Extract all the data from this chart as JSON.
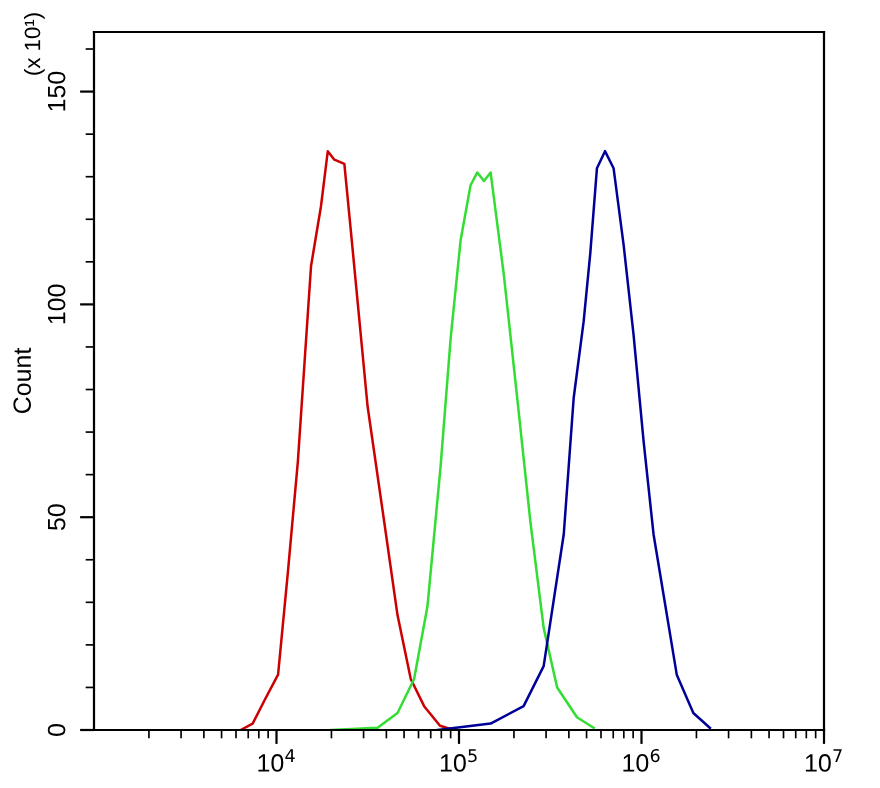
{
  "chart_data": {
    "type": "line",
    "ylabel": "Count",
    "annotations": [
      "(x 10¹)"
    ],
    "log": "x",
    "xlim": [
      1000,
      10000000
    ],
    "ylim": [
      0,
      164
    ],
    "xticks": [
      {
        "value": 10000,
        "label": "10$^{4}$"
      },
      {
        "value": 100000,
        "label": "10$^{5}$"
      },
      {
        "value": 1000000,
        "label": "10$^{6}$"
      },
      {
        "value": 10000000,
        "label": "10$^{7}$"
      }
    ],
    "yticks": [
      0,
      50,
      100,
      150
    ],
    "grid": false,
    "legend": false,
    "marker": "none",
    "line_style": "solid",
    "series": [
      {
        "color": "#cc0000",
        "x": [
          6360,
          7400,
          8600,
          10200,
          11540,
          13090,
          15460,
          17520,
          19100,
          20750,
          23540,
          25590,
          31570,
          38900,
          46030,
          54410,
          64400,
          78700,
          94000
        ],
        "values": [
          0,
          1.5,
          7,
          13,
          37,
          63,
          109,
          123,
          136,
          134,
          133,
          117,
          76,
          49,
          27,
          12,
          5.6,
          1,
          0
        ]
      },
      {
        "color": "#33dd33",
        "x": [
          19870,
          35810,
          46030,
          56750,
          67150,
          79300,
          90000,
          102000,
          115700,
          126000,
          137000,
          149000,
          176000,
          208500,
          246000,
          291000,
          345000,
          443000,
          547000
        ],
        "values": [
          0,
          0.5,
          4,
          12,
          29,
          62,
          92,
          115,
          128,
          131,
          129,
          131,
          107,
          78,
          49,
          24,
          10,
          3,
          0.5
        ]
      },
      {
        "color": "#000099",
        "x": [
          76200,
          149000,
          226000,
          291000,
          375000,
          425000,
          482000,
          524000,
          570000,
          631000,
          703000,
          798000,
          904000,
          1026000,
          1164000,
          1318000,
          1560000,
          1923000,
          2371000
        ],
        "values": [
          0,
          1.5,
          5.6,
          15,
          46,
          78,
          96,
          112,
          132,
          136,
          132,
          114,
          93,
          68,
          46,
          32,
          13,
          4,
          0.5
        ]
      }
    ]
  }
}
